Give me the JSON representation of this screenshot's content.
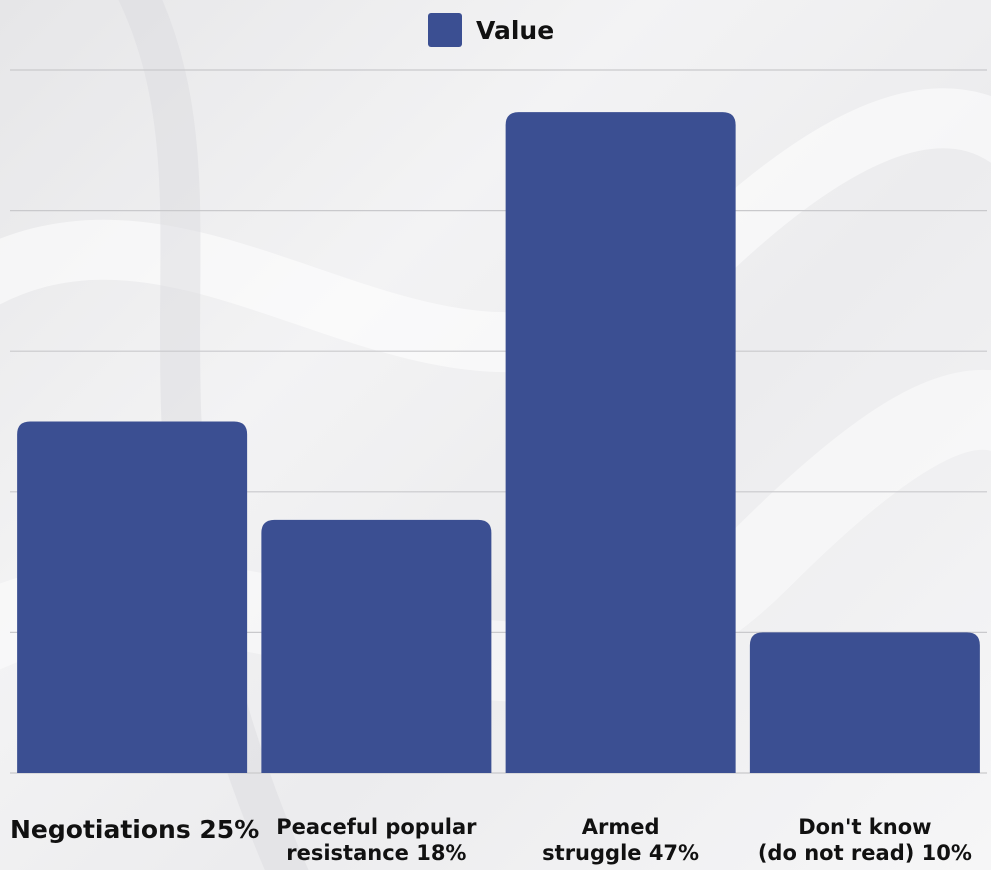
{
  "chart_data": {
    "type": "bar",
    "categories": [
      "Negotiations 25%",
      "Peaceful popular resistance 18%",
      "Armed struggle 47%",
      "Don't know (do not read) 10%"
    ],
    "category_lines": [
      [
        "Negotiations 25%"
      ],
      [
        "Peaceful popular",
        "resistance 18%"
      ],
      [
        "Armed",
        "struggle 47%"
      ],
      [
        "Don't know",
        "(do not read) 10%"
      ]
    ],
    "series": [
      {
        "name": "Value",
        "values": [
          25,
          18,
          47,
          10
        ]
      }
    ],
    "ylim": [
      0,
      50
    ],
    "grid": true,
    "legend_position": "top-center",
    "bar_color": "#3b4f92",
    "gridline_color": "#c9c9cc",
    "title": "",
    "xlabel": "",
    "ylabel": ""
  }
}
